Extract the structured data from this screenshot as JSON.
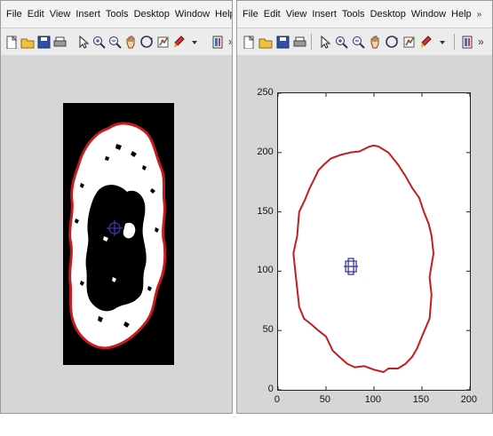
{
  "left_window": {
    "menu": [
      "File",
      "Edit",
      "View",
      "Insert",
      "Tools",
      "Desktop",
      "Window",
      "Help"
    ],
    "menu_chevron": "»",
    "toolbar_icons": [
      "new-figure-icon",
      "open-file-icon",
      "save-icon",
      "print-icon",
      "pointer-icon",
      "zoom-in-icon",
      "zoom-out-icon",
      "pan-hand-icon",
      "rotate-icon",
      "data-cursor-icon",
      "brush-icon",
      "dropdown-arrow-icon",
      "insert-colorbar-icon"
    ],
    "toolbar_chevron": "»"
  },
  "right_window": {
    "menu": [
      "File",
      "Edit",
      "View",
      "Insert",
      "Tools",
      "Desktop",
      "Window",
      "Help"
    ],
    "menu_chevron": "»",
    "toolbar_icons": [
      "new-figure-icon",
      "open-file-icon",
      "save-icon",
      "print-icon",
      "pointer-icon",
      "zoom-in-icon",
      "zoom-out-icon",
      "pan-hand-icon",
      "rotate-icon",
      "data-cursor-icon",
      "brush-icon",
      "dropdown-arrow-icon",
      "insert-colorbar-icon"
    ],
    "toolbar_chevron": "»"
  },
  "colors": {
    "boundary": "#c41d1d",
    "centroid_marker": "#3a3aa8",
    "figure_background": "#d6d6d6"
  },
  "chart_data": {
    "type": "line",
    "title": "",
    "xlabel": "",
    "ylabel": "",
    "xlim": [
      0,
      200
    ],
    "ylim": [
      0,
      250
    ],
    "x_ticks": [
      0,
      50,
      100,
      150,
      200
    ],
    "y_ticks": [
      0,
      50,
      100,
      150,
      200,
      250
    ],
    "x_tick_labels": [
      "0",
      "50",
      "100",
      "150",
      "200"
    ],
    "y_tick_labels": [
      "0",
      "50",
      "100",
      "150",
      "200",
      "250"
    ],
    "grid": false,
    "series": [
      {
        "type": "line",
        "color": "#c41d1d",
        "x": [
          105,
          115,
          125,
          133,
          140,
          147,
          152,
          157,
          160,
          162,
          160,
          158,
          160,
          158,
          150,
          145,
          140,
          133,
          125,
          115,
          110,
          100,
          90,
          80,
          72,
          65,
          57,
          50,
          42,
          35,
          27,
          22,
          20,
          18,
          16,
          20,
          22,
          28,
          33,
          38,
          42,
          48,
          55,
          65,
          75,
          85,
          95,
          100,
          105
        ],
        "y": [
          205,
          200,
          190,
          180,
          170,
          162,
          150,
          140,
          130,
          115,
          105,
          95,
          80,
          60,
          45,
          35,
          28,
          22,
          18,
          18,
          15,
          17,
          20,
          19,
          22,
          27,
          33,
          45,
          50,
          55,
          60,
          70,
          85,
          100,
          115,
          130,
          150,
          160,
          170,
          178,
          185,
          190,
          195,
          198,
          200,
          201,
          205,
          206,
          205
        ]
      },
      {
        "type": "scatter",
        "marker": "square-plus",
        "color": "#3a3aa8",
        "x": [
          76
        ],
        "y": [
          104
        ]
      }
    ]
  }
}
